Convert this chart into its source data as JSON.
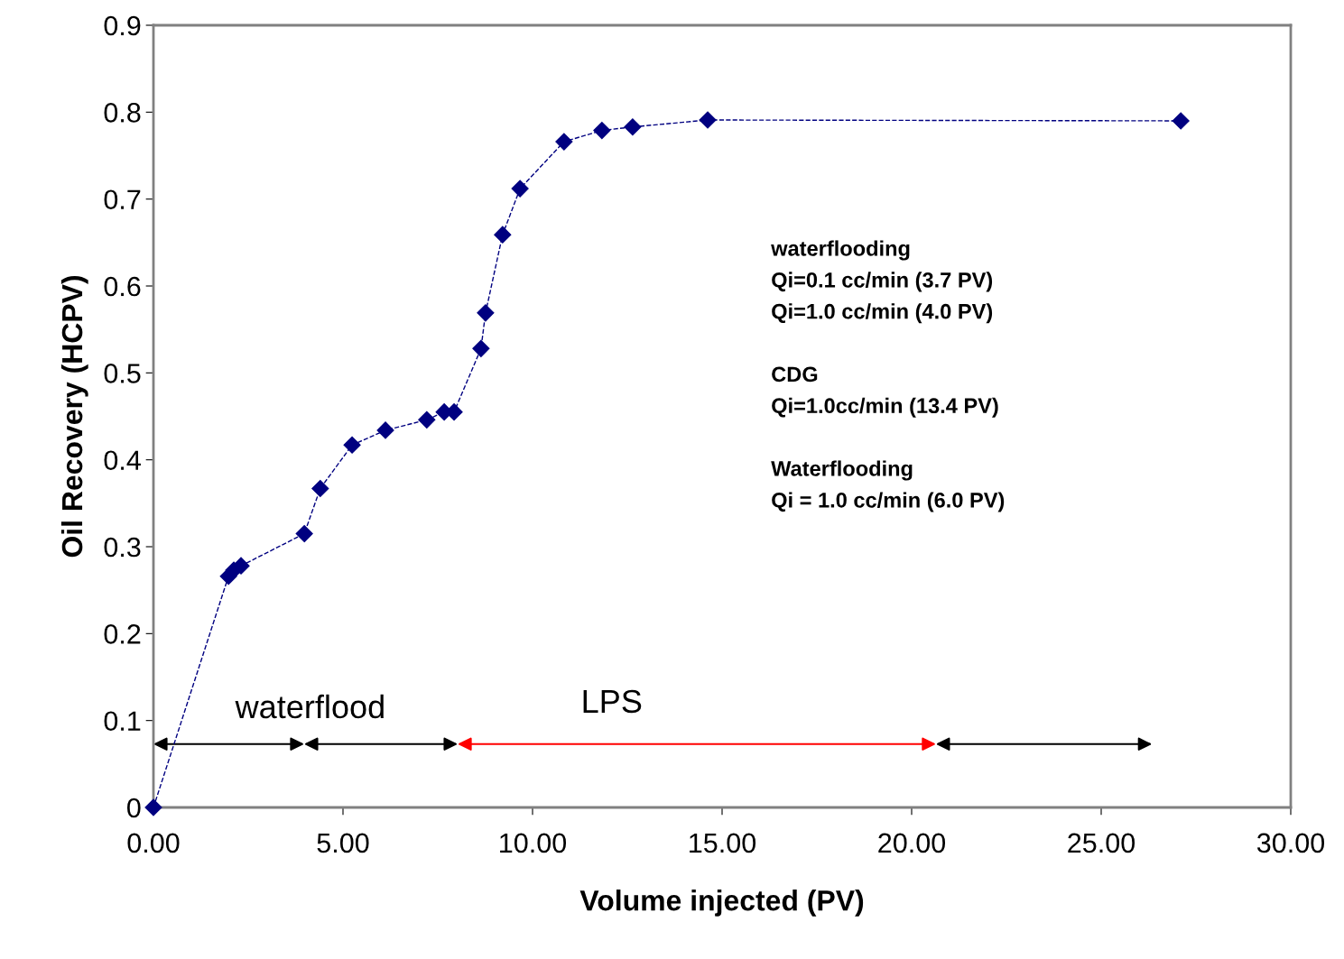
{
  "chart_data": {
    "type": "line",
    "xlabel": "Volume injected (PV)",
    "ylabel": "Oil Recovery (HCPV)",
    "x": [
      0,
      1.98,
      2.12,
      2.31,
      3.98,
      4.4,
      5.24,
      6.12,
      7.21,
      7.67,
      7.93,
      8.64,
      8.76,
      9.21,
      9.67,
      10.83,
      11.83,
      12.64,
      14.62,
      27.1
    ],
    "series": [
      {
        "color": "#000080",
        "values": [
          0,
          0.266,
          0.273,
          0.278,
          0.315,
          0.367,
          0.417,
          0.434,
          0.446,
          0.455,
          0.455,
          0.528,
          0.569,
          0.659,
          0.712,
          0.766,
          0.779,
          0.783,
          0.791,
          0.79
        ]
      }
    ],
    "marker": "diamond",
    "line_style": "dashed",
    "grid": false,
    "legend": false,
    "xlim": [
      0,
      30
    ],
    "xticks": [
      {
        "value": 0,
        "label": "0.00"
      },
      {
        "value": 5,
        "label": "5.00"
      },
      {
        "value": 10,
        "label": "10.00"
      },
      {
        "value": 15,
        "label": "15.00"
      },
      {
        "value": 20,
        "label": "20.00"
      },
      {
        "value": 25,
        "label": "25.00"
      },
      {
        "value": 30,
        "label": "30.00"
      }
    ],
    "ylim": [
      0,
      0.9
    ],
    "yticks": [
      0,
      0.1,
      0.2,
      0.3,
      0.4,
      0.5,
      0.6,
      0.7,
      0.8,
      0.9
    ],
    "annotations": [
      "waterflood",
      "LPS",
      "waterflooding\nQi=0.1 cc/min (3.7 PV)\nQi=1.0 cc/min (4.0 PV)\n\nCDG\nQi=1.0cc/min (13.4 PV)\n\nWaterflooding\nQi = 1.0 cc/min (6.0 PV)"
    ]
  }
}
